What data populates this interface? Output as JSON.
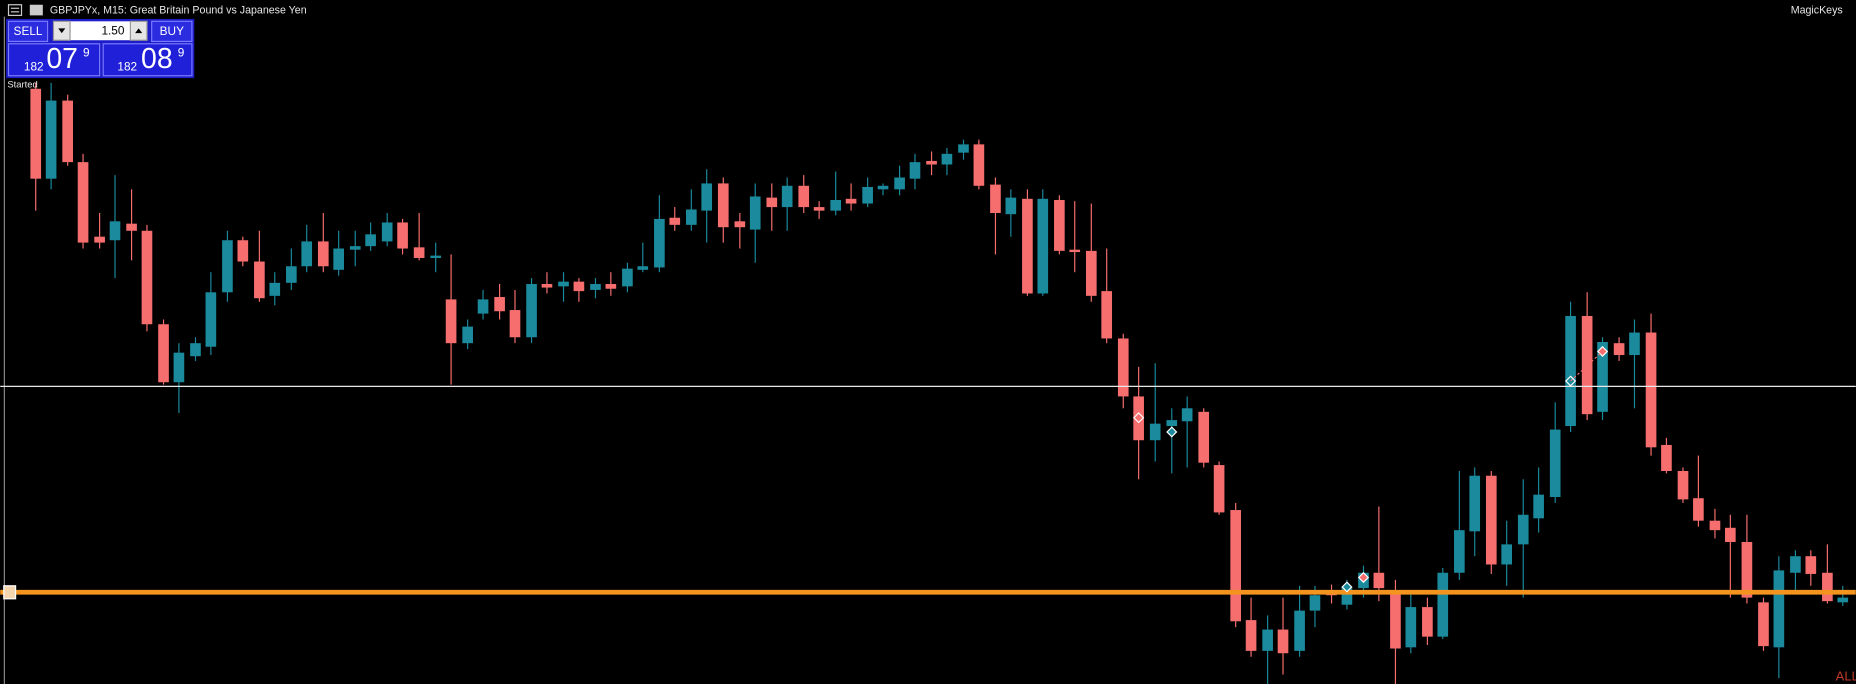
{
  "header": {
    "title": "GBPJPYx, M15:  Great Britain Pound vs Japanese Yen",
    "right": "MagicKeys"
  },
  "trade_panel": {
    "sell": "SELL",
    "lot": "1.50",
    "buy": "BUY",
    "bid": {
      "big": "182",
      "pips": "07",
      "point": "9"
    },
    "ask": {
      "big": "182",
      "pips": "08",
      "point": "9"
    }
  },
  "status": "Started",
  "corner": "ALL"
}
